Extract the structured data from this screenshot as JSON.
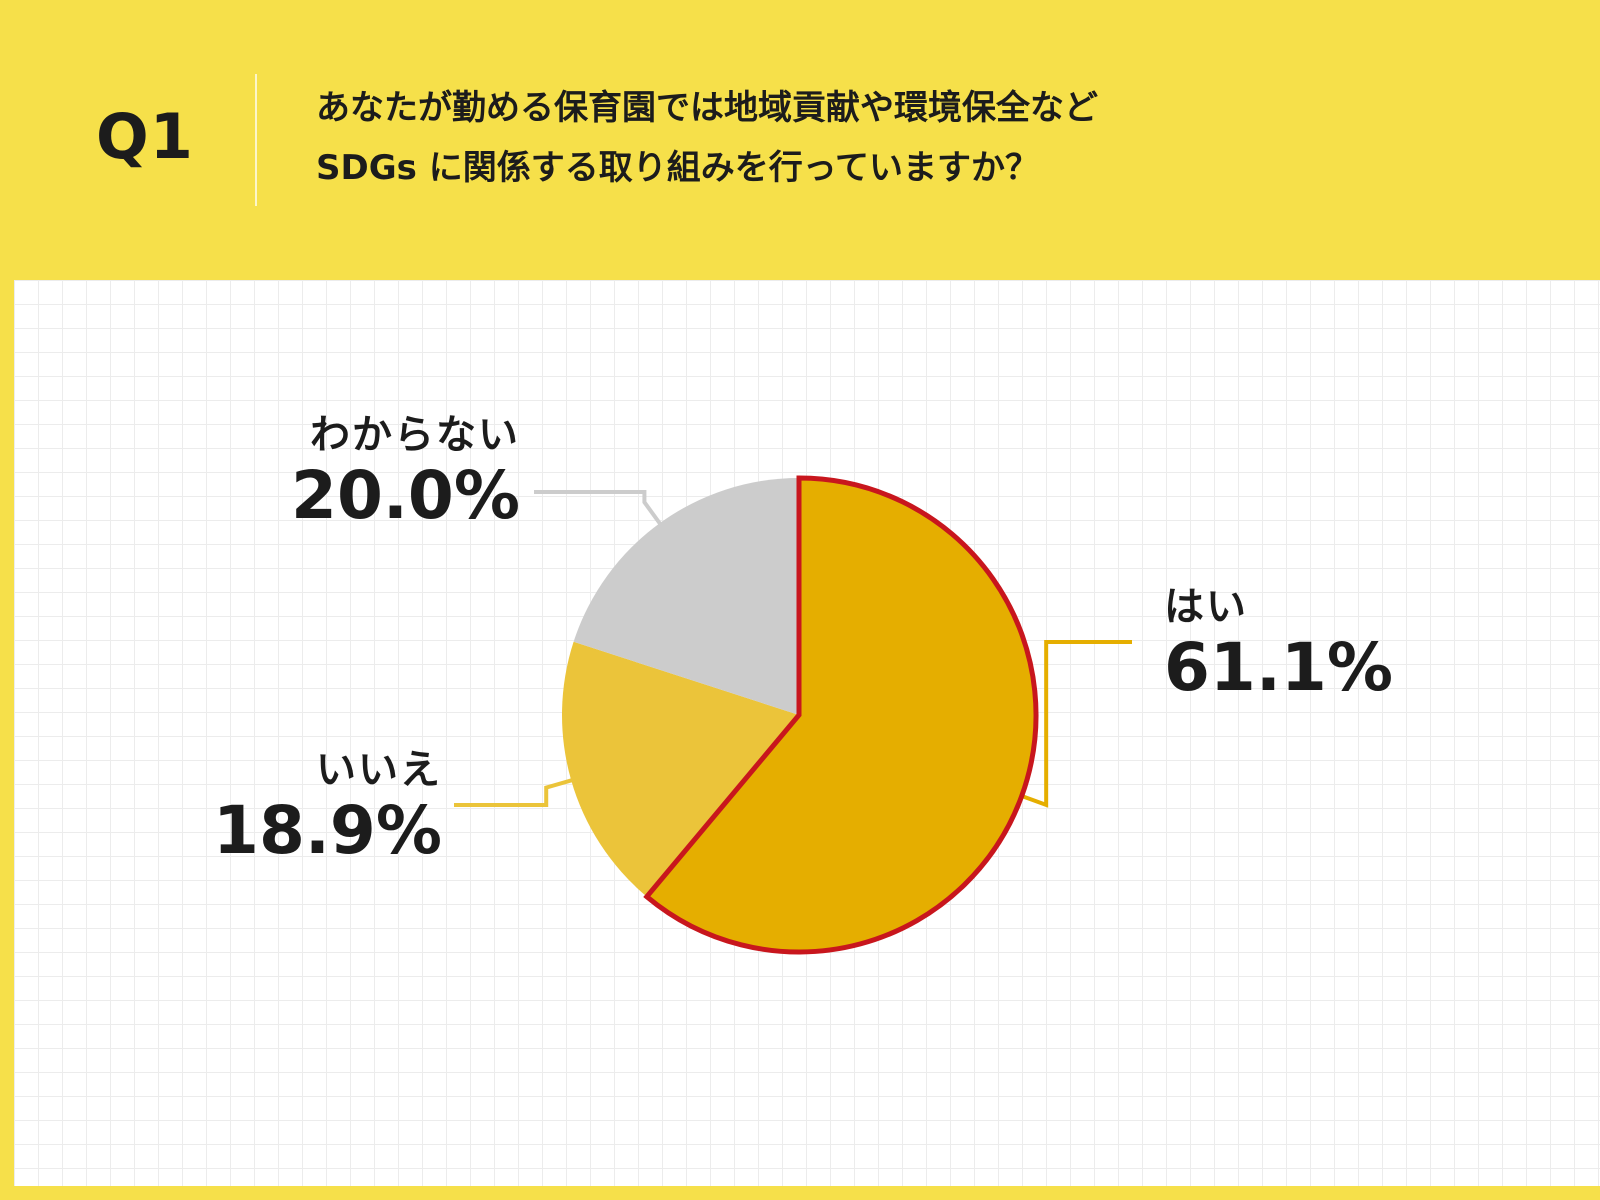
{
  "header": {
    "q_label": "Q1",
    "question_line1": "あなたが勤める保育園では地域貢献や環境保全など",
    "question_line2": "SDGs に関係する取り組みを行っていますか？"
  },
  "colors": {
    "background": "#f6e04a",
    "highlight_stroke": "#c8161d"
  },
  "chart_data": {
    "type": "pie",
    "slices": [
      {
        "label": "はい",
        "value": 61.1,
        "display": "61.1%",
        "color": "#e5ae00",
        "highlight": true
      },
      {
        "label": "いいえ",
        "value": 18.9,
        "display": "18.9%",
        "color": "#ebc43a",
        "highlight": false
      },
      {
        "label": "わからない",
        "value": 20.0,
        "display": "20.0%",
        "color": "#cccccc",
        "highlight": false
      }
    ],
    "start": "12 o'clock",
    "direction": "clockwise",
    "grid": true
  }
}
